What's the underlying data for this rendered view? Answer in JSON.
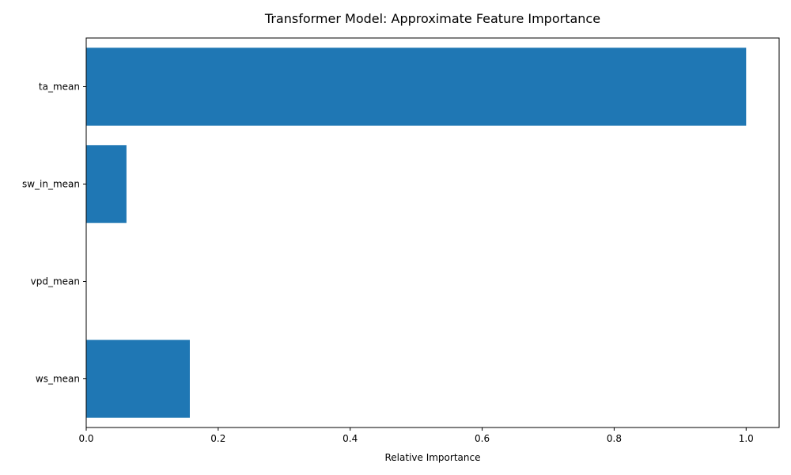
{
  "chart_data": {
    "type": "bar",
    "orientation": "horizontal",
    "title": "Transformer Model: Approximate Feature Importance",
    "xlabel": "Relative Importance",
    "ylabel": "",
    "categories": [
      "ta_mean",
      "sw_in_mean",
      "vpd_mean",
      "ws_mean"
    ],
    "values": [
      1.0,
      0.061,
      0.0,
      0.157
    ],
    "xlim": [
      0,
      1.05
    ],
    "xticks": [
      0.0,
      0.2,
      0.4,
      0.6,
      0.8,
      1.0
    ],
    "xtick_labels": [
      "0.0",
      "0.2",
      "0.4",
      "0.6",
      "0.8",
      "1.0"
    ],
    "grid": false,
    "bar_color": "#1f77b4"
  }
}
